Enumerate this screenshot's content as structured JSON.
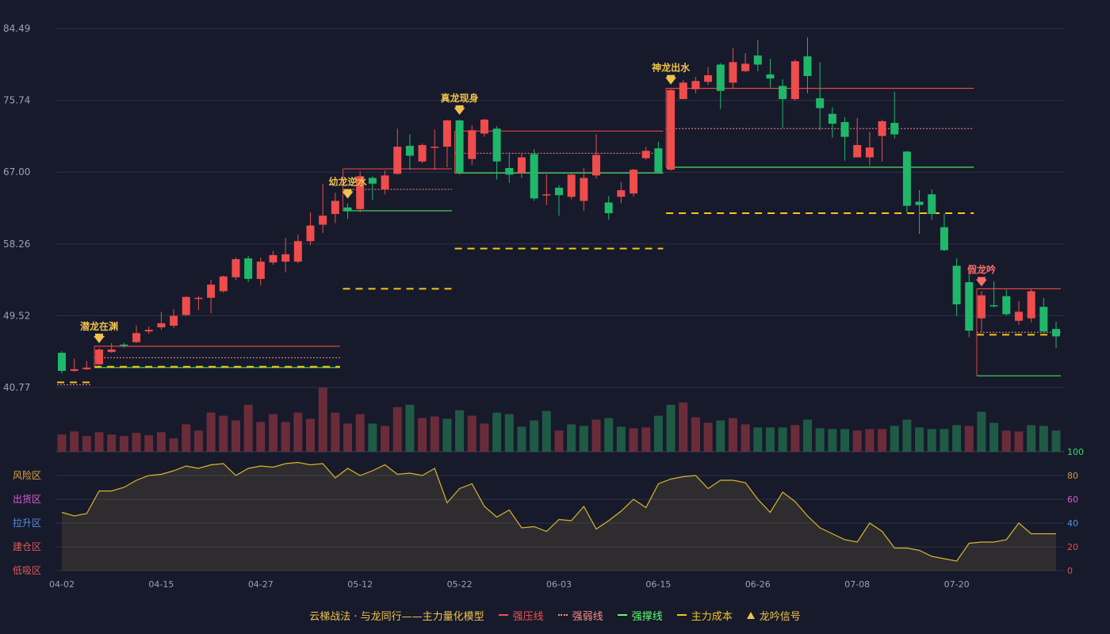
{
  "legend": {
    "title": "云梯战法 · 与龙同行——主力量化模型",
    "items": [
      {
        "label": "强压线",
        "color": "#f05050",
        "style": "solid"
      },
      {
        "label": "强弱线",
        "color": "#ff8a8a",
        "style": "dotted"
      },
      {
        "label": "强撑线",
        "color": "#5cff6e",
        "style": "solid"
      },
      {
        "label": "主力成本",
        "color": "#f5c518",
        "style": "dashed"
      },
      {
        "label": "龙吟信号",
        "color": "#f0c24c",
        "style": "triangle"
      }
    ]
  },
  "chart_data": {
    "type": "candlestick",
    "colors": {
      "up": "#ef4c4c",
      "down": "#1fb86a",
      "background": "#171a2b",
      "grid": "#2f3346",
      "axis_text": "#9aa0b8",
      "signal": "#f0c24c",
      "false_signal": "#ff6b6b",
      "sentiment_line": "#d8b52c"
    },
    "price_axis": {
      "ticks": [
        "84.49",
        "75.74",
        "67.00",
        "58.26",
        "49.52",
        "40.77"
      ],
      "min": 40.77,
      "max": 84.49
    },
    "x_ticks": [
      "04-02",
      "04-15",
      "04-27",
      "05-12",
      "05-22",
      "06-03",
      "06-15",
      "06-26",
      "07-08",
      "07-20"
    ],
    "x_tick_index": [
      0,
      8,
      16,
      24,
      32,
      40,
      48,
      56,
      64,
      72
    ],
    "candles": [
      [
        45.0,
        42.8,
        42.5,
        45.2
      ],
      [
        42.8,
        43.0,
        42.7,
        44.3
      ],
      [
        43.0,
        43.2,
        42.9,
        44.0
      ],
      [
        43.6,
        45.4,
        43.5,
        45.6
      ],
      [
        45.1,
        45.4,
        45.0,
        46.2
      ],
      [
        46.0,
        45.9,
        45.6,
        46.2
      ],
      [
        46.3,
        47.4,
        46.2,
        48.3
      ],
      [
        47.6,
        47.8,
        47.3,
        48.2
      ],
      [
        48.1,
        48.6,
        47.8,
        50.0
      ],
      [
        48.3,
        49.5,
        48.0,
        50.3
      ],
      [
        49.6,
        51.8,
        49.5,
        51.9
      ],
      [
        51.6,
        51.7,
        50.2,
        51.9
      ],
      [
        51.7,
        53.3,
        49.8,
        53.9
      ],
      [
        52.5,
        54.3,
        52.3,
        54.4
      ],
      [
        54.2,
        56.4,
        53.9,
        56.6
      ],
      [
        56.5,
        54.0,
        53.6,
        56.8
      ],
      [
        54.0,
        56.1,
        53.2,
        56.6
      ],
      [
        56.0,
        56.9,
        55.7,
        57.4
      ],
      [
        56.1,
        57.0,
        54.8,
        59.0
      ],
      [
        56.1,
        58.6,
        55.9,
        59.4
      ],
      [
        58.6,
        60.5,
        58.1,
        62.1
      ],
      [
        60.6,
        61.7,
        59.6,
        65.6
      ],
      [
        61.9,
        63.5,
        60.8,
        64.5
      ],
      [
        62.7,
        62.3,
        61.3,
        63.2
      ],
      [
        62.5,
        66.5,
        62.1,
        67.1
      ],
      [
        66.3,
        65.6,
        63.6,
        66.5
      ],
      [
        64.9,
        66.6,
        64.3,
        67.2
      ],
      [
        66.8,
        70.1,
        66.7,
        72.3
      ],
      [
        70.2,
        69.0,
        67.3,
        71.6
      ],
      [
        68.3,
        70.3,
        68.1,
        70.5
      ],
      [
        70.0,
        70.1,
        67.3,
        72.2
      ],
      [
        70.1,
        73.3,
        67.6,
        73.4
      ],
      [
        73.3,
        67.0,
        66.7,
        73.4
      ],
      [
        68.6,
        72.1,
        67.9,
        72.7
      ],
      [
        71.7,
        73.4,
        71.3,
        73.5
      ],
      [
        72.3,
        68.3,
        66.1,
        72.6
      ],
      [
        67.5,
        66.7,
        65.7,
        69.4
      ],
      [
        66.9,
        68.8,
        66.3,
        69.3
      ],
      [
        69.2,
        63.8,
        63.5,
        69.8
      ],
      [
        64.2,
        64.3,
        63.0,
        66.7
      ],
      [
        65.1,
        64.2,
        61.7,
        65.4
      ],
      [
        64.0,
        66.7,
        63.7,
        66.8
      ],
      [
        63.5,
        66.3,
        62.3,
        67.5
      ],
      [
        66.6,
        69.1,
        66.2,
        71.6
      ],
      [
        63.3,
        62.0,
        61.2,
        64.1
      ],
      [
        64.0,
        64.8,
        63.2,
        65.8
      ],
      [
        64.4,
        67.3,
        64.0,
        67.4
      ],
      [
        68.7,
        69.6,
        68.5,
        70.1
      ],
      [
        69.9,
        67.0,
        66.9,
        70.7
      ],
      [
        67.3,
        77.0,
        67.2,
        77.1
      ],
      [
        75.9,
        77.9,
        75.9,
        78.2
      ],
      [
        77.1,
        78.1,
        76.6,
        78.6
      ],
      [
        78.0,
        78.8,
        77.6,
        79.8
      ],
      [
        80.1,
        76.9,
        74.7,
        80.3
      ],
      [
        77.9,
        80.4,
        77.2,
        82.1
      ],
      [
        79.3,
        80.2,
        79.2,
        81.5
      ],
      [
        81.2,
        80.1,
        79.3,
        83.1
      ],
      [
        78.9,
        78.4,
        77.3,
        80.8
      ],
      [
        77.5,
        75.9,
        72.4,
        78.3
      ],
      [
        75.9,
        80.5,
        75.7,
        80.7
      ],
      [
        81.1,
        78.7,
        76.6,
        83.4
      ],
      [
        76.0,
        74.8,
        72.1,
        80.4
      ],
      [
        74.1,
        72.9,
        71.2,
        74.9
      ],
      [
        73.1,
        71.3,
        68.4,
        73.7
      ],
      [
        68.8,
        70.3,
        68.8,
        73.6
      ],
      [
        68.8,
        70.0,
        67.8,
        71.9
      ],
      [
        71.4,
        73.2,
        68.3,
        73.4
      ],
      [
        73.0,
        71.6,
        71.1,
        76.8
      ],
      [
        69.5,
        62.9,
        62.1,
        69.6
      ],
      [
        63.4,
        63.0,
        59.5,
        64.8
      ],
      [
        64.3,
        61.9,
        61.2,
        64.9
      ],
      [
        60.3,
        57.5,
        57.4,
        61.9
      ],
      [
        55.6,
        50.9,
        49.5,
        56.5
      ],
      [
        53.6,
        47.7,
        46.9,
        54.6
      ],
      [
        49.2,
        52.0,
        47.5,
        52.5
      ],
      [
        50.8,
        50.7,
        50.5,
        53.7
      ],
      [
        51.9,
        49.7,
        49.5,
        52.7
      ],
      [
        48.9,
        50.0,
        48.4,
        51.3
      ],
      [
        49.2,
        52.5,
        48.7,
        52.8
      ],
      [
        50.6,
        47.6,
        47.4,
        51.7
      ],
      [
        47.9,
        47.0,
        45.6,
        48.8
      ]
    ],
    "volumes": [
      22,
      26,
      20,
      25,
      22,
      20,
      24,
      21,
      25,
      17,
      35,
      27,
      50,
      46,
      40,
      60,
      38,
      48,
      38,
      50,
      42,
      82,
      50,
      36,
      48,
      36,
      33,
      57,
      60,
      43,
      45,
      42,
      53,
      46,
      36,
      50,
      48,
      32,
      40,
      52,
      27,
      35,
      33,
      41,
      43,
      32,
      30,
      31,
      46,
      60,
      63,
      44,
      37,
      40,
      43,
      35,
      31,
      31,
      31,
      34,
      41,
      30,
      29,
      29,
      27,
      29,
      29,
      33,
      41,
      31,
      29,
      29,
      34,
      33,
      51,
      37,
      27,
      26,
      34,
      33,
      27
    ],
    "volume_up": [
      1,
      1,
      1,
      1,
      1,
      1,
      1,
      1,
      1,
      1,
      1,
      1,
      1,
      1,
      1,
      1,
      1,
      1,
      1,
      1,
      1,
      1,
      1,
      1,
      1,
      0,
      1,
      1,
      0,
      1,
      1,
      0,
      0,
      1,
      1,
      0,
      0,
      0,
      0,
      0,
      1,
      0,
      0,
      1,
      0,
      0,
      1,
      1,
      0,
      0,
      1,
      1,
      1,
      0,
      1,
      1,
      0,
      0,
      0,
      1,
      0,
      0,
      0,
      0,
      1,
      1,
      1,
      0,
      0,
      0,
      0,
      0,
      0,
      1,
      0,
      0,
      1,
      1,
      0,
      0,
      0
    ],
    "signals": [
      {
        "index": 3,
        "label": "潜龙在渊"
      },
      {
        "index": 23,
        "label": "幼龙逆水"
      },
      {
        "index": 32,
        "label": "真龙现身"
      },
      {
        "index": 49,
        "label": "神龙出水"
      },
      {
        "index": 74,
        "label": "假龙吟",
        "false": true
      }
    ],
    "zones": [
      {
        "from": 3,
        "to": 22,
        "resist": 45.8,
        "mid": 44.4,
        "support": 43.2,
        "cost": 43.3
      },
      {
        "from": 23,
        "to": 31,
        "resist": 67.4,
        "mid": 64.9,
        "support": 62.3,
        "cost": 52.8
      },
      {
        "from": 32,
        "to": 48,
        "resist": 72.0,
        "mid": 69.3,
        "support": 66.9,
        "cost": 57.7
      },
      {
        "from": 49,
        "to": 73,
        "resist": 77.2,
        "mid": 72.3,
        "support": 67.6,
        "cost": 62.0
      },
      {
        "from": 74,
        "to": 80,
        "resist": 52.8,
        "mid": 47.5,
        "support": 42.2,
        "cost": 47.2
      }
    ],
    "pre_zone": {
      "from": 0,
      "to": 2,
      "cost": 41.4,
      "mid": 41.1
    },
    "sentiment": {
      "ticks": [
        "100",
        "80",
        "60",
        "40",
        "20",
        "0"
      ],
      "tick_colors": [
        "#2fdb6a",
        "#d39b31",
        "#d060d0",
        "#5b8fe0",
        "#e05050",
        "#e05050"
      ],
      "zones": [
        "风险区",
        "出货区",
        "拉升区",
        "建仓区",
        "低吸区"
      ],
      "zone_colors": [
        "#e3a73a",
        "#e05cd8",
        "#5a8fe0",
        "#e05858",
        "#e05858"
      ],
      "values": [
        49,
        46,
        48,
        67,
        67,
        70,
        76,
        80,
        81,
        84,
        88,
        86,
        89,
        90,
        80,
        86,
        88,
        87,
        90,
        91,
        89,
        90,
        78,
        86,
        80,
        84,
        89,
        81,
        82,
        80,
        86,
        57,
        69,
        73,
        54,
        45,
        51,
        36,
        37,
        33,
        43,
        42,
        54,
        35,
        42,
        50,
        60,
        53,
        73,
        77,
        79,
        80,
        69,
        76,
        76,
        74,
        60,
        49,
        66,
        58,
        46,
        36,
        31,
        26,
        24,
        40,
        33,
        19,
        19,
        17,
        12,
        10,
        8,
        23,
        24,
        24,
        26,
        40,
        31,
        31,
        31
      ]
    }
  }
}
